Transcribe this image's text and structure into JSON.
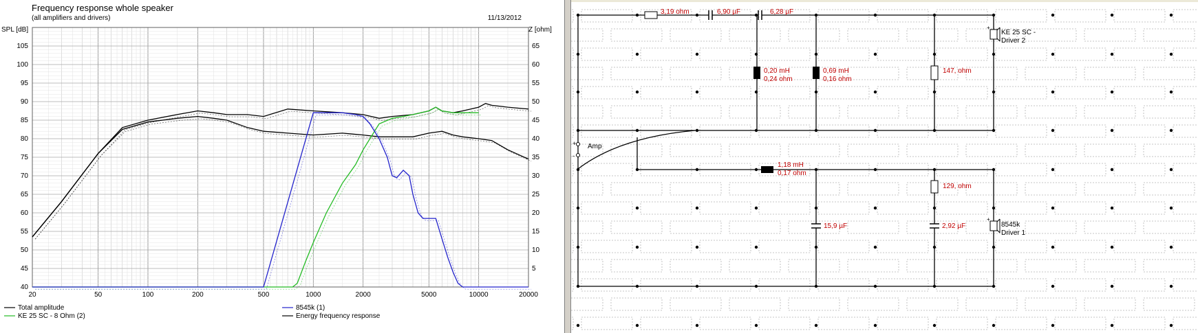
{
  "chart": {
    "title": "Frequency response whole speaker",
    "subtitle": "(all amplifiers and drivers)",
    "date": "11/13/2012",
    "left_axis_label": "SPL [dB]",
    "right_axis_label": "Z [ohm]",
    "legend": [
      {
        "label": "Total amplitude",
        "color": "#000000"
      },
      {
        "label": "KE 25 SC - 8 Ohm    (2)",
        "color": "#22bb22"
      },
      {
        "label": "8545k (1)",
        "color": "#2222cc"
      },
      {
        "label": "Energy frequency response",
        "color": "#000000"
      }
    ]
  },
  "chart_data": {
    "type": "line",
    "title": "Frequency response whole speaker",
    "subtitle": "(all amplifiers and drivers)",
    "xlabel": "",
    "ylabel": "SPL [dB]",
    "y2label": "Z [ohm]",
    "xscale": "log",
    "xlim": [
      20,
      20000
    ],
    "ylim": [
      40,
      110
    ],
    "y2lim": [
      0,
      70
    ],
    "x_ticks": [
      20,
      50,
      100,
      200,
      500,
      1000,
      2000,
      5000,
      10000,
      20000
    ],
    "y_ticks": [
      40,
      45,
      50,
      55,
      60,
      65,
      70,
      75,
      80,
      85,
      90,
      95,
      100,
      105
    ],
    "y2_ticks": [
      5,
      10,
      15,
      20,
      25,
      30,
      35,
      40,
      45,
      50,
      55,
      60,
      65
    ],
    "grid": true,
    "legend_position": "bottom",
    "series": [
      {
        "name": "Total amplitude",
        "color": "#000000",
        "x": [
          20,
          30,
          50,
          70,
          100,
          150,
          200,
          250,
          300,
          400,
          500,
          700,
          1000,
          1500,
          2000,
          2500,
          3000,
          4000,
          5000,
          6000,
          7000,
          8000,
          10000,
          12000,
          15000,
          20000
        ],
        "y": [
          53.5,
          63,
          76,
          82.5,
          84.5,
          85.5,
          86,
          85.5,
          85,
          83,
          82,
          81.5,
          81,
          81.5,
          81,
          80.5,
          80.5,
          80.5,
          81.5,
          82,
          81,
          80.5,
          80,
          79.5,
          77,
          74.5
        ]
      },
      {
        "name": "Energy frequency response",
        "color": "#000000",
        "x": [
          20,
          30,
          50,
          70,
          100,
          150,
          200,
          250,
          300,
          400,
          500,
          700,
          1000,
          1500,
          2000,
          2500,
          3000,
          4000,
          5000,
          5500,
          6000,
          7000,
          8000,
          10000,
          11000,
          12000,
          15000,
          20000
        ],
        "y": [
          53.5,
          63,
          76,
          83,
          85,
          86.5,
          87.5,
          87,
          86.5,
          86.5,
          86,
          88,
          87.5,
          87,
          86.5,
          85.5,
          86,
          86.5,
          87.5,
          88.5,
          87.5,
          87,
          87.5,
          88.5,
          89.5,
          89,
          88.5,
          88
        ]
      },
      {
        "name": "KE 25 SC - 8 Ohm    (2)",
        "color": "#22bb22",
        "x": [
          20,
          700,
          750,
          800,
          900,
          1000,
          1200,
          1500,
          1800,
          2000,
          2200,
          2500,
          3000,
          3500,
          4000,
          5000,
          5500,
          6000,
          7000,
          8000,
          10000
        ],
        "y": [
          40,
          40,
          40,
          41,
          47,
          52,
          60,
          68,
          73,
          77,
          80,
          84,
          85.5,
          86,
          86.5,
          87.5,
          88.5,
          87.5,
          87,
          87,
          87
        ]
      },
      {
        "name": "8545k (1)",
        "color": "#2222cc",
        "x": [
          20,
          500,
          1000,
          1500,
          1800,
          2000,
          2200,
          2500,
          2800,
          3000,
          3200,
          3500,
          3800,
          4000,
          4300,
          4600,
          5000,
          5500,
          6000,
          6500,
          7000,
          7500,
          8000,
          10000,
          15000,
          20000
        ],
        "y": [
          40,
          40,
          87,
          87,
          86.5,
          86,
          84,
          80,
          75,
          70,
          69.5,
          71.5,
          70,
          65,
          60,
          58.5,
          58.5,
          58.5,
          53,
          48,
          44,
          41,
          40,
          40,
          40,
          40
        ]
      }
    ]
  },
  "circuit": {
    "components": [
      {
        "id": "r1",
        "label": "3,19 ohm"
      },
      {
        "id": "c1",
        "label": "6,90 µF"
      },
      {
        "id": "c2",
        "label": "6,28 µF"
      },
      {
        "id": "l1",
        "label1": "0,20 mH",
        "label2": "0,24 ohm"
      },
      {
        "id": "l2",
        "label1": "0,69 mH",
        "label2": "0,16 ohm"
      },
      {
        "id": "r2",
        "label": "147, ohm"
      },
      {
        "id": "drv2",
        "label1": "KE 25 SC -",
        "label2": "Driver 2"
      },
      {
        "id": "amp",
        "label": "Amp",
        "plus": "+",
        "minus": "-"
      },
      {
        "id": "l3",
        "label1": "1,18 mH",
        "label2": "0,17 ohm"
      },
      {
        "id": "r3",
        "label": "129, ohm"
      },
      {
        "id": "c3",
        "label": "15,9 µF"
      },
      {
        "id": "c4",
        "label": "2,92 µF"
      },
      {
        "id": "drv1",
        "label1": "8545k",
        "label2": "Driver 1"
      }
    ]
  }
}
